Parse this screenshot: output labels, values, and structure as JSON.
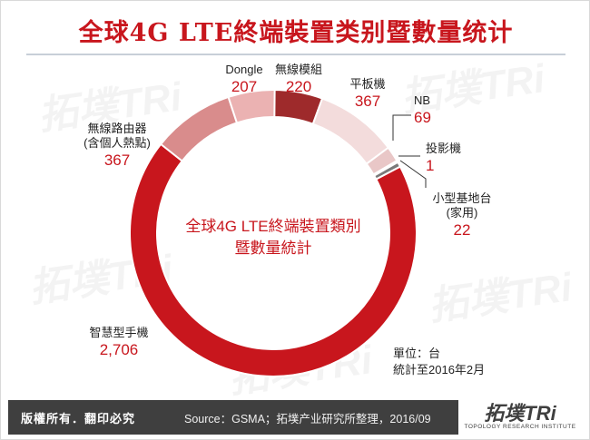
{
  "title": "全球4G LTE終端裝置类别暨數量统计",
  "center_label": {
    "line1": "全球4G LTE終端裝置類別",
    "line2": "暨數量統計"
  },
  "unit_note": {
    "line1": "單位：台",
    "line2": "統計至2016年2月"
  },
  "footer": {
    "copyright": "版權所有．翻印必究",
    "source": "Source：GSMA；拓墣产业研究所整理，2016/09",
    "logo": "拓墣TRi",
    "logo_sub": "TOPOLOGY RESEARCH INSTITUTE"
  },
  "watermark": "拓墣TRi",
  "colors": {
    "title": "#c8161d",
    "value_text": "#c8161d",
    "footer_bg": "#3f3f3f"
  },
  "chart_data": {
    "type": "pie",
    "style": "donut",
    "start_angle_deg": 90,
    "direction": "clockwise",
    "title": "全球4G LTE終端裝置類別暨數量統計",
    "slices": [
      {
        "label": [
          "無線模組"
        ],
        "value": 220,
        "color": "#9e2a2b"
      },
      {
        "label": [
          "平板機"
        ],
        "value": 367,
        "color": "#f3dcdc"
      },
      {
        "label": [
          "NB"
        ],
        "value": 69,
        "color": "#e9c7c7"
      },
      {
        "label": [
          "投影機"
        ],
        "value": 1,
        "color": "#8a8a8a"
      },
      {
        "label": [
          "小型基地台",
          "(家用)"
        ],
        "value": 22,
        "color": "#7a7a7a"
      },
      {
        "label": [
          "智慧型手機"
        ],
        "value": 2706,
        "color": "#c8161d"
      },
      {
        "label": [
          "無線路由器",
          "(含個人熱點)"
        ],
        "value": 367,
        "color": "#d98c8c"
      },
      {
        "label": [
          "Dongle"
        ],
        "value": 207,
        "color": "#ebb2b2"
      }
    ]
  }
}
